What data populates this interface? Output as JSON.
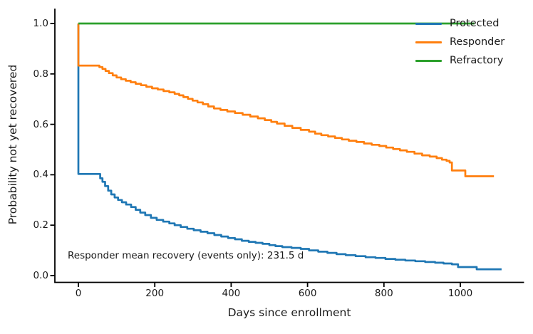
{
  "chart_data": {
    "type": "line",
    "style": "kaplan-meier-step",
    "title": "",
    "xlabel": "Days since enrollment",
    "ylabel": "Probability not yet recovered",
    "annotation": "Responder mean recovery (events only): 231.5 d",
    "grid": false,
    "legend": {
      "position": "upper right",
      "frame": false
    },
    "xlim": [
      -62,
      1167
    ],
    "ylim": [
      -0.027,
      1.055
    ],
    "x_ticks": [
      {
        "v": 0,
        "label": "0"
      },
      {
        "v": 200,
        "label": "200"
      },
      {
        "v": 400,
        "label": "400"
      },
      {
        "v": 600,
        "label": "600"
      },
      {
        "v": 800,
        "label": "800"
      },
      {
        "v": 1000,
        "label": "1000"
      }
    ],
    "y_ticks": [
      {
        "v": 0.0,
        "label": "0.0"
      },
      {
        "v": 0.2,
        "label": "0.2"
      },
      {
        "v": 0.4,
        "label": "0.4"
      },
      {
        "v": 0.6,
        "label": "0.6"
      },
      {
        "v": 0.8,
        "label": "0.8"
      },
      {
        "v": 1.0,
        "label": "1.0"
      }
    ],
    "series": [
      {
        "name": "Protected",
        "color": "#1f77b4",
        "points": [
          [
            0,
            1.0
          ],
          [
            0,
            0.403
          ],
          [
            50,
            0.403
          ],
          [
            57,
            0.386
          ],
          [
            63,
            0.372
          ],
          [
            70,
            0.355
          ],
          [
            78,
            0.337
          ],
          [
            86,
            0.322
          ],
          [
            95,
            0.31
          ],
          [
            104,
            0.3
          ],
          [
            114,
            0.291
          ],
          [
            125,
            0.282
          ],
          [
            138,
            0.272
          ],
          [
            150,
            0.261
          ],
          [
            162,
            0.25
          ],
          [
            175,
            0.24
          ],
          [
            190,
            0.229
          ],
          [
            205,
            0.221
          ],
          [
            222,
            0.214
          ],
          [
            238,
            0.207
          ],
          [
            252,
            0.2
          ],
          [
            268,
            0.193
          ],
          [
            285,
            0.186
          ],
          [
            302,
            0.18
          ],
          [
            320,
            0.174
          ],
          [
            338,
            0.168
          ],
          [
            356,
            0.161
          ],
          [
            374,
            0.155
          ],
          [
            392,
            0.149
          ],
          [
            410,
            0.144
          ],
          [
            428,
            0.138
          ],
          [
            446,
            0.134
          ],
          [
            464,
            0.13
          ],
          [
            482,
            0.126
          ],
          [
            500,
            0.121
          ],
          [
            516,
            0.117
          ],
          [
            534,
            0.113
          ],
          [
            558,
            0.11
          ],
          [
            582,
            0.106
          ],
          [
            604,
            0.1
          ],
          [
            628,
            0.095
          ],
          [
            652,
            0.09
          ],
          [
            676,
            0.085
          ],
          [
            700,
            0.081
          ],
          [
            726,
            0.077
          ],
          [
            752,
            0.073
          ],
          [
            778,
            0.07
          ],
          [
            804,
            0.066
          ],
          [
            830,
            0.063
          ],
          [
            856,
            0.06
          ],
          [
            882,
            0.057
          ],
          [
            908,
            0.054
          ],
          [
            934,
            0.051
          ],
          [
            956,
            0.048
          ],
          [
            978,
            0.045
          ],
          [
            994,
            0.034
          ],
          [
            1043,
            0.025
          ],
          [
            1108,
            0.025
          ]
        ]
      },
      {
        "name": "Responder",
        "color": "#ff7f0e",
        "points": [
          [
            0,
            1.0
          ],
          [
            0,
            0.833
          ],
          [
            47,
            0.833
          ],
          [
            55,
            0.827
          ],
          [
            63,
            0.82
          ],
          [
            71,
            0.812
          ],
          [
            80,
            0.803
          ],
          [
            90,
            0.794
          ],
          [
            100,
            0.786
          ],
          [
            112,
            0.779
          ],
          [
            124,
            0.773
          ],
          [
            137,
            0.767
          ],
          [
            150,
            0.761
          ],
          [
            164,
            0.755
          ],
          [
            178,
            0.749
          ],
          [
            193,
            0.743
          ],
          [
            208,
            0.738
          ],
          [
            223,
            0.732
          ],
          [
            238,
            0.727
          ],
          [
            252,
            0.721
          ],
          [
            264,
            0.715
          ],
          [
            275,
            0.708
          ],
          [
            287,
            0.701
          ],
          [
            299,
            0.694
          ],
          [
            312,
            0.687
          ],
          [
            326,
            0.68
          ],
          [
            340,
            0.671
          ],
          [
            355,
            0.663
          ],
          [
            372,
            0.657
          ],
          [
            390,
            0.651
          ],
          [
            410,
            0.645
          ],
          [
            430,
            0.638
          ],
          [
            450,
            0.631
          ],
          [
            470,
            0.624
          ],
          [
            488,
            0.617
          ],
          [
            505,
            0.61
          ],
          [
            520,
            0.603
          ],
          [
            540,
            0.594
          ],
          [
            560,
            0.586
          ],
          [
            582,
            0.578
          ],
          [
            604,
            0.571
          ],
          [
            620,
            0.563
          ],
          [
            636,
            0.557
          ],
          [
            654,
            0.552
          ],
          [
            672,
            0.546
          ],
          [
            690,
            0.54
          ],
          [
            708,
            0.535
          ],
          [
            728,
            0.53
          ],
          [
            748,
            0.524
          ],
          [
            768,
            0.519
          ],
          [
            788,
            0.514
          ],
          [
            806,
            0.508
          ],
          [
            824,
            0.502
          ],
          [
            842,
            0.497
          ],
          [
            860,
            0.491
          ],
          [
            880,
            0.484
          ],
          [
            900,
            0.477
          ],
          [
            920,
            0.472
          ],
          [
            938,
            0.466
          ],
          [
            952,
            0.46
          ],
          [
            964,
            0.455
          ],
          [
            972,
            0.449
          ],
          [
            978,
            0.417
          ],
          [
            1013,
            0.394
          ],
          [
            1088,
            0.394
          ]
        ]
      },
      {
        "name": "Refractory",
        "color": "#2ca02c",
        "points": [
          [
            0,
            1.0
          ],
          [
            1037,
            1.0
          ]
        ]
      }
    ]
  }
}
